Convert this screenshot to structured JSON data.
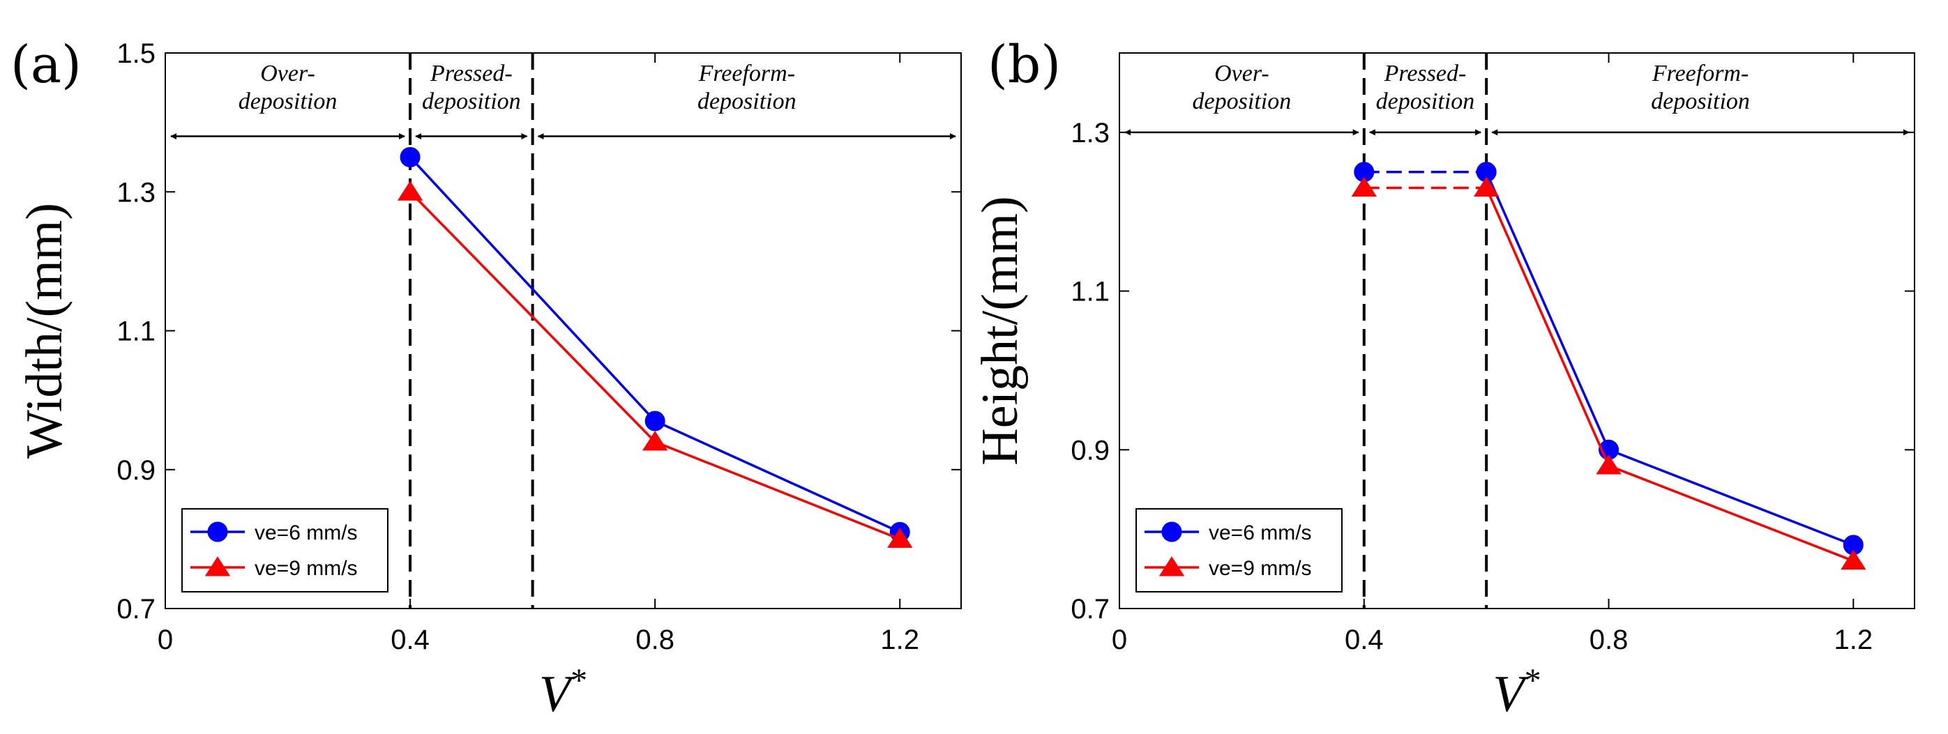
{
  "chart_data": [
    {
      "type": "line",
      "panel_label": "(a)",
      "xlabel": "V",
      "xlabel_superscript": "*",
      "ylabel": "Width/(mm)",
      "xlim": [
        0,
        1.3
      ],
      "ylim": [
        0.7,
        1.5
      ],
      "xticks": [
        0,
        0.4,
        0.8,
        1.2
      ],
      "xtick_labels": [
        "0",
        "0.4",
        "0.8",
        "1.2"
      ],
      "yticks": [
        0.7,
        0.9,
        1.1,
        1.3,
        1.5
      ],
      "ytick_labels": [
        "0.7",
        "0.9",
        "1.1",
        "1.3",
        "1.5"
      ],
      "grid": false,
      "legend_position": "bottom-left",
      "vertical_lines": [
        0.4,
        0.6
      ],
      "arrow_y": 1.38,
      "regions": [
        {
          "label_line1": "Over-",
          "label_line2": "deposition",
          "x_range": [
            0,
            0.4
          ]
        },
        {
          "label_line1": "Pressed-",
          "label_line2": "deposition",
          "x_range": [
            0.4,
            0.6
          ]
        },
        {
          "label_line1": "Freeform-",
          "label_line2": "deposition",
          "x_range": [
            0.6,
            1.3
          ]
        }
      ],
      "series": [
        {
          "name": "ve=6 mm/s",
          "color": "#0000ff",
          "marker": "circle",
          "x": [
            0.4,
            0.8,
            1.2
          ],
          "y": [
            1.35,
            0.97,
            0.81
          ],
          "dashed_segment": null
        },
        {
          "name": "ve=9 mm/s",
          "color": "#ff0000",
          "marker": "triangle",
          "x": [
            0.4,
            0.8,
            1.2
          ],
          "y": [
            1.3,
            0.94,
            0.8
          ],
          "dashed_segment": null
        }
      ]
    },
    {
      "type": "line",
      "panel_label": "(b)",
      "xlabel": "V",
      "xlabel_superscript": "*",
      "ylabel": "Height/(mm)",
      "xlim": [
        0,
        1.3
      ],
      "ylim": [
        0.7,
        1.4
      ],
      "xticks": [
        0,
        0.4,
        0.8,
        1.2
      ],
      "xtick_labels": [
        "0",
        "0.4",
        "0.8",
        "1.2"
      ],
      "yticks": [
        0.7,
        0.9,
        1.1,
        1.3
      ],
      "ytick_labels": [
        "0.7",
        "0.9",
        "1.1",
        "1.3"
      ],
      "grid": false,
      "legend_position": "bottom-left",
      "vertical_lines": [
        0.4,
        0.6
      ],
      "arrow_y": 1.3,
      "regions": [
        {
          "label_line1": "Over-",
          "label_line2": "deposition",
          "x_range": [
            0,
            0.4
          ]
        },
        {
          "label_line1": "Pressed-",
          "label_line2": "deposition",
          "x_range": [
            0.4,
            0.6
          ]
        },
        {
          "label_line1": "Freeform-",
          "label_line2": "deposition",
          "x_range": [
            0.6,
            1.3
          ]
        }
      ],
      "series": [
        {
          "name": "ve=6 mm/s",
          "color": "#0000ff",
          "marker": "circle",
          "x": [
            0.4,
            0.6,
            0.8,
            1.2
          ],
          "y": [
            1.25,
            1.25,
            0.9,
            0.78
          ],
          "dashed_segment": [
            0,
            1
          ]
        },
        {
          "name": "ve=9 mm/s",
          "color": "#ff0000",
          "marker": "triangle",
          "x": [
            0.4,
            0.6,
            0.8,
            1.2
          ],
          "y": [
            1.23,
            1.23,
            0.88,
            0.76
          ],
          "dashed_segment": [
            0,
            1
          ]
        }
      ]
    }
  ]
}
